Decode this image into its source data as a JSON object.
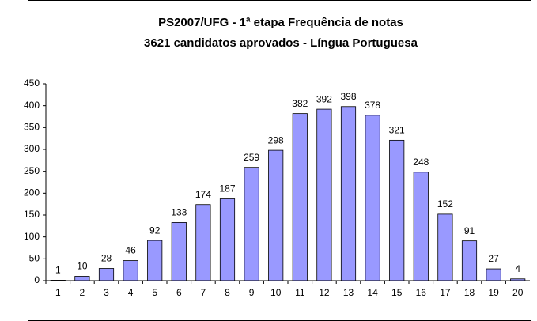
{
  "chart_data": {
    "type": "bar",
    "title": [
      "PS2007/UFG - 1ª etapa Frequência de notas",
      "3621 candidatos aprovados - Língua Portuguesa"
    ],
    "categories": [
      "1",
      "2",
      "3",
      "4",
      "5",
      "6",
      "7",
      "8",
      "9",
      "10",
      "11",
      "12",
      "13",
      "14",
      "15",
      "16",
      "17",
      "18",
      "19",
      "20"
    ],
    "values": [
      1,
      10,
      28,
      46,
      92,
      133,
      174,
      187,
      259,
      298,
      382,
      392,
      398,
      378,
      321,
      248,
      152,
      91,
      27,
      4
    ],
    "color": "#9999ff",
    "ylim": [
      0,
      450
    ],
    "yticks": [
      0,
      50,
      100,
      150,
      200,
      250,
      300,
      350,
      400,
      450
    ],
    "grid": false
  }
}
